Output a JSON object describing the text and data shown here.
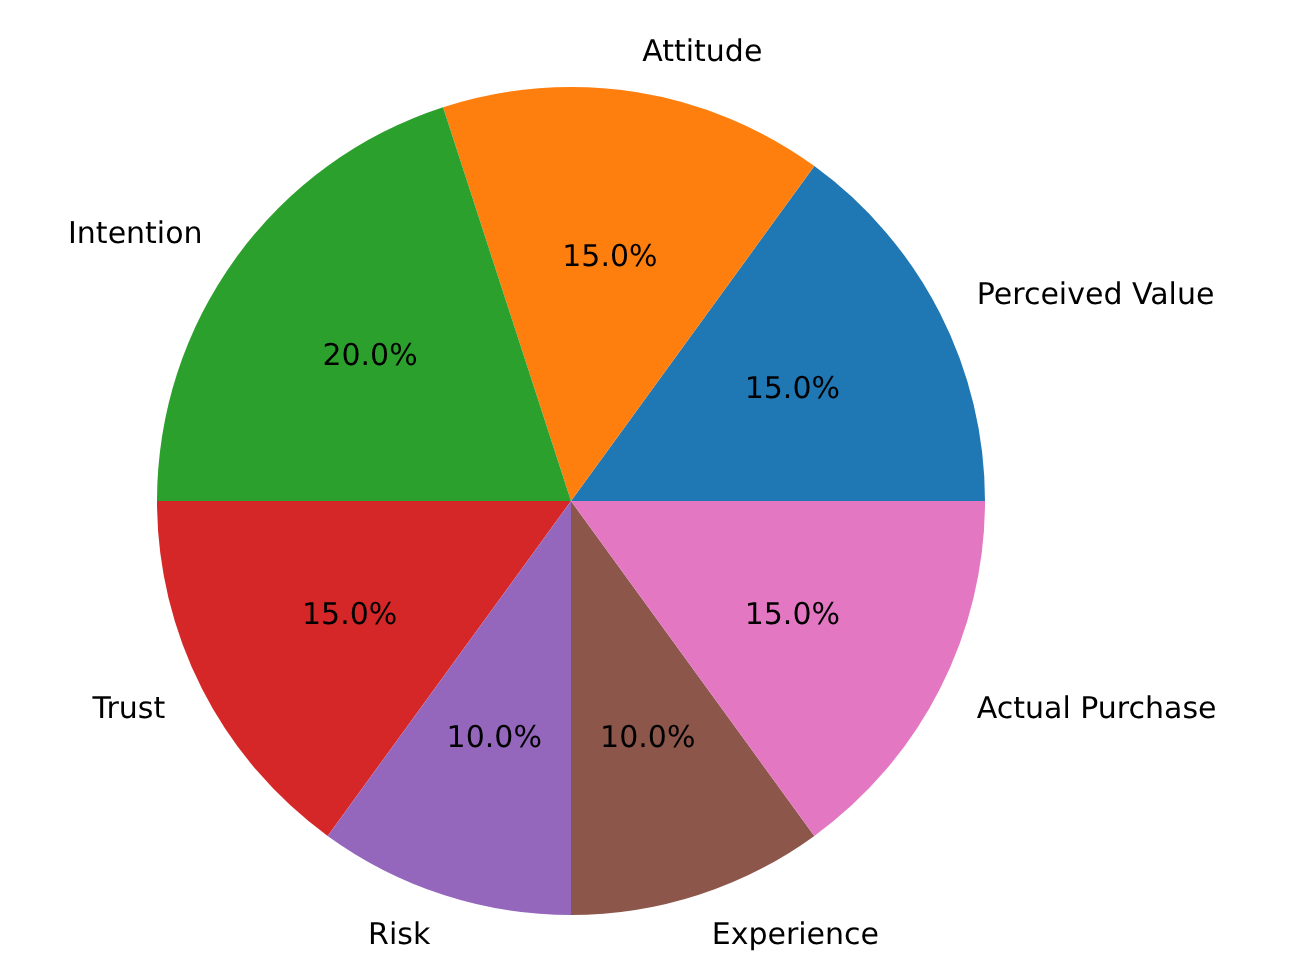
{
  "chart_data": {
    "type": "pie",
    "categories": [
      "Perceived Value",
      "Attitude",
      "Intention",
      "Trust",
      "Risk",
      "Experience",
      "Actual Purchase"
    ],
    "values": [
      15,
      15,
      20,
      15,
      10,
      10,
      15
    ],
    "colors": [
      "#1f77b4",
      "#ff7f0e",
      "#2ca02c",
      "#d62728",
      "#9467bd",
      "#8c564b",
      "#e377c2"
    ],
    "value_labels": [
      "15.0%",
      "15.0%",
      "20.0%",
      "15.0%",
      "10.0%",
      "10.0%",
      "15.0%"
    ]
  }
}
